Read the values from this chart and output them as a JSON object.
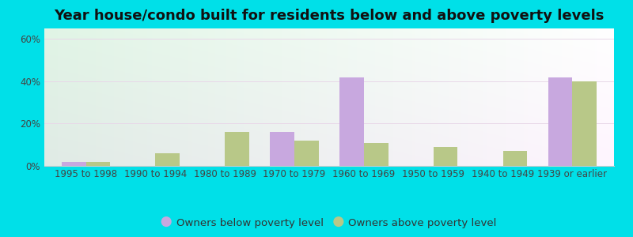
{
  "title": "Year house/condo built for residents below and above poverty levels",
  "categories": [
    "1995 to 1998",
    "1990 to 1994",
    "1980 to 1989",
    "1970 to 1979",
    "1960 to 1969",
    "1950 to 1959",
    "1940 to 1949",
    "1939 or earlier"
  ],
  "below_poverty": [
    2,
    0,
    0,
    16,
    42,
    0,
    0,
    42
  ],
  "above_poverty": [
    2,
    6,
    16,
    12,
    11,
    9,
    7,
    40
  ],
  "below_color": "#c8a8df",
  "above_color": "#b8c888",
  "bg_color_topleft": "#d0ede0",
  "bg_color_bottomright": "#f0faf5",
  "outer_background": "#00e0e8",
  "ylim": [
    0,
    65
  ],
  "yticks": [
    0,
    20,
    40,
    60
  ],
  "ytick_labels": [
    "0%",
    "20%",
    "40%",
    "60%"
  ],
  "bar_width": 0.35,
  "legend_below_label": "Owners below poverty level",
  "legend_above_label": "Owners above poverty level",
  "title_fontsize": 13,
  "axis_fontsize": 8.5,
  "legend_fontsize": 9.5
}
